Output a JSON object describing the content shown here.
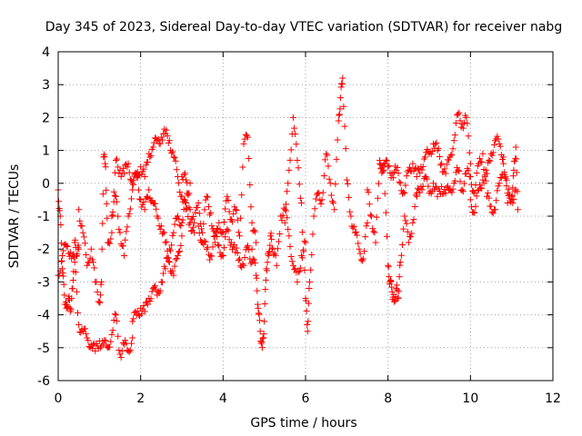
{
  "chart_data": {
    "type": "scatter",
    "title": "Day 345 of 2023, Sidereal Day-to-day VTEC variation (SDTVAR) for receiver nabg",
    "xlabel": "GPS time / hours",
    "ylabel": "SDTVAR / TECUs",
    "xlim": [
      0,
      12
    ],
    "ylim": [
      -6,
      4
    ],
    "xticks": [
      0,
      2,
      4,
      6,
      8,
      10,
      12
    ],
    "yticks": [
      -6,
      -5,
      -4,
      -3,
      -2,
      -1,
      0,
      1,
      2,
      3,
      4
    ],
    "grid": true,
    "marker": "+",
    "color": "#ff0000",
    "series": [
      {
        "name": "SDTVAR",
        "segments": [
          {
            "x": [
              0.0,
              0.05,
              0.1,
              0.15,
              0.2,
              0.25,
              0.3,
              0.35,
              0.4,
              0.45,
              0.5
            ],
            "y": [
              -0.2,
              -1.0,
              -2.6,
              -3.4,
              -3.8,
              -3.5,
              -3.9,
              -3.2,
              -1.8,
              -2.2,
              -2.0
            ]
          },
          {
            "x": [
              0.0,
              0.1,
              0.2,
              0.3,
              0.4,
              0.5,
              0.6,
              0.7,
              0.8,
              0.9,
              1.0,
              1.1,
              1.2,
              1.3,
              1.4,
              1.5,
              1.6,
              1.7,
              1.8
            ],
            "y": [
              -2.8,
              -2.2,
              -1.9,
              -2.1,
              -2.4,
              -4.3,
              -4.5,
              -4.7,
              -4.9,
              -5.1,
              -4.8,
              -4.9,
              -5.0,
              -4.6,
              -4.0,
              -5.2,
              -4.9,
              -5.1,
              -4.7
            ]
          },
          {
            "x": [
              0.5,
              0.6,
              0.7,
              0.8,
              0.9,
              1.0,
              1.05,
              1.1,
              1.15,
              1.2,
              1.3,
              1.4,
              1.5,
              1.6,
              1.7,
              1.8,
              1.9,
              2.0,
              2.1,
              2.2,
              2.3,
              2.4,
              2.5,
              2.6,
              2.7,
              2.8,
              2.9,
              3.0,
              3.1,
              3.2,
              3.3
            ],
            "y": [
              -0.8,
              -1.5,
              -2.5,
              -2.0,
              -3.0,
              -3.6,
              -3.0,
              0.8,
              0.5,
              -1.8,
              -1.5,
              0.7,
              0.4,
              0.3,
              0.6,
              0.0,
              0.2,
              0.5,
              0.2,
              0.9,
              1.1,
              1.3,
              1.4,
              1.5,
              1.3,
              0.8,
              0.2,
              -0.4,
              -0.8,
              -1.2,
              -1.5
            ]
          },
          {
            "x": [
              1.8,
              1.9,
              2.0,
              2.1,
              2.2,
              2.3,
              2.4,
              2.5,
              2.6,
              2.7,
              2.8,
              2.9,
              3.0,
              3.1,
              3.2
            ],
            "y": [
              -4.2,
              -4.0,
              -3.8,
              -3.9,
              -3.5,
              -3.2,
              -3.4,
              -3.0,
              -2.6,
              -2.0,
              -1.5,
              -1.0,
              -1.2,
              -0.6,
              0.0
            ]
          },
          {
            "x": [
              1.3,
              1.4,
              1.5,
              1.6,
              1.7,
              1.8,
              1.9,
              2.0,
              2.1,
              2.2,
              2.3,
              2.4,
              2.5,
              2.6,
              2.7,
              2.8,
              2.9,
              3.0
            ],
            "y": [
              -1.0,
              -0.4,
              -1.5,
              -2.2,
              -1.0,
              -0.2,
              0.3,
              -0.5,
              -0.8,
              -0.2,
              -0.6,
              -1.0,
              -1.3,
              -1.8,
              -2.4,
              -2.8,
              -2.2,
              -1.6
            ]
          },
          {
            "x": [
              3.0,
              3.1,
              3.2,
              3.3,
              3.4,
              3.5,
              3.6,
              3.7,
              3.8,
              3.9,
              4.0,
              4.1,
              4.2,
              4.3,
              4.4,
              4.5,
              4.6,
              4.7,
              4.8
            ],
            "y": [
              0.2,
              0.1,
              -0.8,
              -1.2,
              -0.6,
              -1.5,
              -0.4,
              -0.9,
              -1.8,
              -1.2,
              -1.5,
              -0.4,
              -1.1,
              -0.8,
              -1.6,
              1.2,
              1.4,
              -1.2,
              -1.8
            ]
          },
          {
            "x": [
              3.4,
              3.5,
              3.6,
              3.7,
              3.8,
              3.9,
              4.0,
              4.1,
              4.2,
              4.3,
              4.4,
              4.5,
              4.6,
              4.7
            ],
            "y": [
              -1.3,
              -1.8,
              -2.0,
              -2.2,
              -1.6,
              -1.9,
              -2.2,
              -1.4,
              -1.8,
              -2.1,
              -2.3,
              -2.5,
              -1.9,
              -2.4
            ]
          },
          {
            "x": [
              4.7,
              4.8,
              4.85,
              4.9,
              4.95,
              5.0,
              5.05,
              5.1,
              5.15,
              5.2,
              5.3,
              5.4,
              5.5,
              5.6,
              5.7,
              5.8,
              5.9,
              6.0
            ],
            "y": [
              -2.0,
              -2.8,
              -3.8,
              -4.5,
              -5.0,
              -4.2,
              -2.6,
              -2.2,
              -1.6,
              -2.0,
              -2.5,
              -1.0,
              -0.8,
              -1.6,
              -2.5,
              -3.0,
              -2.2,
              -1.8
            ]
          },
          {
            "x": [
              5.5,
              5.6,
              5.7,
              5.8,
              5.9,
              6.0,
              6.05,
              6.1,
              6.2,
              6.3,
              6.4,
              6.5,
              6.6,
              6.7,
              6.8,
              6.85,
              6.9,
              7.0,
              7.1,
              7.2,
              7.3,
              7.4,
              7.5
            ],
            "y": [
              -1.2,
              0.4,
              2.0,
              0.7,
              -0.6,
              -3.5,
              -4.5,
              -3.0,
              -1.0,
              -0.3,
              -0.5,
              0.9,
              0.0,
              -0.8,
              1.9,
              2.6,
              3.2,
              0.1,
              -1.0,
              -1.5,
              -2.0,
              -2.3,
              -1.2
            ]
          },
          {
            "x": [
              7.5,
              7.6,
              7.7,
              7.8,
              7.9,
              8.0,
              8.05,
              8.1,
              8.15,
              8.2,
              8.25,
              8.3,
              8.4,
              8.5,
              8.6,
              8.7
            ],
            "y": [
              -0.2,
              -1.0,
              -1.8,
              0.6,
              0.4,
              -2.5,
              -3.0,
              -3.3,
              -3.6,
              -3.2,
              -3.5,
              -2.4,
              -1.0,
              -1.8,
              -1.2,
              -0.3
            ]
          },
          {
            "x": [
              7.8,
              7.9,
              8.0,
              8.1,
              8.2,
              8.3,
              8.4,
              8.5,
              8.6,
              8.7,
              8.8,
              8.9,
              9.0,
              9.1,
              9.2,
              9.3,
              9.4,
              9.5,
              9.6,
              9.7,
              9.8,
              9.9,
              10.0
            ],
            "y": [
              0.7,
              0.6,
              0.5,
              0.3,
              0.4,
              0.0,
              -0.3,
              0.4,
              0.6,
              0.2,
              0.5,
              0.8,
              0.9,
              1.2,
              1.0,
              0.6,
              0.3,
              0.8,
              1.3,
              2.1,
              1.8,
              2.0,
              0.6
            ]
          },
          {
            "x": [
              8.7,
              8.8,
              8.9,
              9.0,
              9.1,
              9.2,
              9.3,
              9.4,
              9.5,
              9.6,
              9.7,
              9.8,
              9.9,
              10.0,
              10.1,
              10.2,
              10.3,
              10.4,
              10.5,
              10.6,
              10.7,
              10.8,
              10.9,
              11.0,
              11.1
            ],
            "y": [
              -0.4,
              -0.1,
              0.2,
              -0.3,
              0.0,
              -0.4,
              -0.1,
              -0.3,
              -0.2,
              0.0,
              0.4,
              -0.2,
              0.3,
              0.2,
              -0.3,
              0.6,
              0.9,
              -0.4,
              -0.7,
              -0.8,
              0.0,
              0.6,
              -0.3,
              -0.5,
              -0.2
            ]
          },
          {
            "x": [
              10.0,
              10.1,
              10.2,
              10.3,
              10.4,
              10.5,
              10.6,
              10.7,
              10.8,
              10.9,
              11.0,
              11.05,
              11.1,
              11.15
            ],
            "y": [
              -0.5,
              -0.9,
              -0.2,
              0.1,
              0.3,
              0.9,
              1.3,
              1.2,
              0.8,
              -0.6,
              -0.4,
              0.4,
              1.1,
              -0.8
            ]
          }
        ]
      }
    ]
  }
}
